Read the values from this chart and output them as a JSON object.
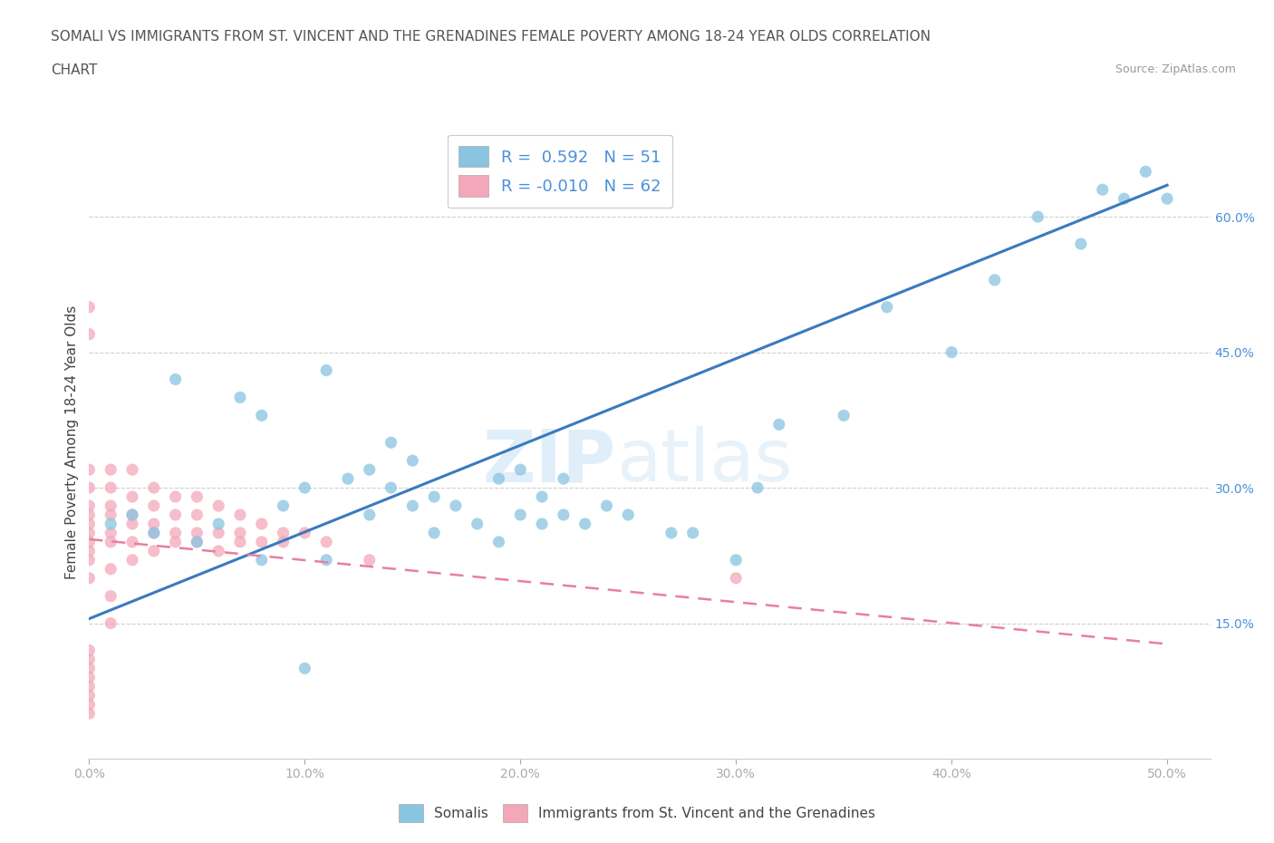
{
  "title_line1": "SOMALI VS IMMIGRANTS FROM ST. VINCENT AND THE GRENADINES FEMALE POVERTY AMONG 18-24 YEAR OLDS CORRELATION",
  "title_line2": "CHART",
  "source": "Source: ZipAtlas.com",
  "ylabel": "Female Poverty Among 18-24 Year Olds",
  "xlim": [
    0.0,
    0.52
  ],
  "ylim": [
    0.0,
    0.7
  ],
  "xticks": [
    0.0,
    0.1,
    0.2,
    0.3,
    0.4,
    0.5
  ],
  "xticklabels": [
    "0.0%",
    "10.0%",
    "20.0%",
    "30.0%",
    "40.0%",
    "50.0%"
  ],
  "yticks_right": [
    0.15,
    0.3,
    0.45,
    0.6
  ],
  "yticklabels_right": [
    "15.0%",
    "30.0%",
    "45.0%",
    "60.0%"
  ],
  "legend_r1": "R =  0.592",
  "legend_n1": "N = 51",
  "legend_r2": "R = -0.010",
  "legend_n2": "N = 62",
  "color_blue": "#89c4e1",
  "color_pink": "#f4a7b9",
  "color_blue_line": "#3a7abf",
  "color_pink_line": "#e87fa0",
  "watermark_zip": "ZIP",
  "watermark_atlas": "atlas",
  "blue_scatter_x": [
    0.04,
    0.07,
    0.08,
    0.09,
    0.1,
    0.11,
    0.11,
    0.12,
    0.13,
    0.13,
    0.14,
    0.14,
    0.15,
    0.15,
    0.16,
    0.16,
    0.17,
    0.18,
    0.19,
    0.19,
    0.2,
    0.2,
    0.21,
    0.21,
    0.22,
    0.22,
    0.23,
    0.24,
    0.25,
    0.27,
    0.28,
    0.3,
    0.31,
    0.32,
    0.35,
    0.37,
    0.4,
    0.42,
    0.44,
    0.46,
    0.47,
    0.48,
    0.49,
    0.5,
    0.01,
    0.02,
    0.03,
    0.05,
    0.06,
    0.08,
    0.1
  ],
  "blue_scatter_y": [
    0.42,
    0.4,
    0.38,
    0.28,
    0.3,
    0.43,
    0.22,
    0.31,
    0.32,
    0.27,
    0.3,
    0.35,
    0.28,
    0.33,
    0.25,
    0.29,
    0.28,
    0.26,
    0.24,
    0.31,
    0.27,
    0.32,
    0.29,
    0.26,
    0.27,
    0.31,
    0.26,
    0.28,
    0.27,
    0.25,
    0.25,
    0.22,
    0.3,
    0.37,
    0.38,
    0.5,
    0.45,
    0.53,
    0.6,
    0.57,
    0.63,
    0.62,
    0.65,
    0.62,
    0.26,
    0.27,
    0.25,
    0.24,
    0.26,
    0.22,
    0.1
  ],
  "pink_scatter_x": [
    0.0,
    0.0,
    0.0,
    0.0,
    0.0,
    0.0,
    0.0,
    0.0,
    0.0,
    0.0,
    0.0,
    0.0,
    0.0,
    0.0,
    0.0,
    0.0,
    0.0,
    0.0,
    0.0,
    0.0,
    0.01,
    0.01,
    0.01,
    0.01,
    0.01,
    0.01,
    0.01,
    0.01,
    0.01,
    0.02,
    0.02,
    0.02,
    0.02,
    0.02,
    0.02,
    0.03,
    0.03,
    0.03,
    0.03,
    0.03,
    0.04,
    0.04,
    0.04,
    0.04,
    0.05,
    0.05,
    0.05,
    0.05,
    0.06,
    0.06,
    0.06,
    0.07,
    0.07,
    0.07,
    0.08,
    0.08,
    0.09,
    0.09,
    0.1,
    0.11,
    0.13,
    0.3
  ],
  "pink_scatter_y": [
    0.05,
    0.06,
    0.07,
    0.08,
    0.09,
    0.1,
    0.11,
    0.12,
    0.2,
    0.22,
    0.23,
    0.24,
    0.25,
    0.26,
    0.27,
    0.28,
    0.3,
    0.32,
    0.47,
    0.5,
    0.15,
    0.18,
    0.21,
    0.24,
    0.25,
    0.27,
    0.28,
    0.3,
    0.32,
    0.22,
    0.24,
    0.26,
    0.27,
    0.29,
    0.32,
    0.23,
    0.25,
    0.26,
    0.28,
    0.3,
    0.24,
    0.25,
    0.27,
    0.29,
    0.24,
    0.25,
    0.27,
    0.29,
    0.23,
    0.25,
    0.28,
    0.24,
    0.25,
    0.27,
    0.24,
    0.26,
    0.24,
    0.25,
    0.25,
    0.24,
    0.22,
    0.2
  ],
  "blue_trendline_x": [
    0.0,
    0.5
  ],
  "blue_trendline_y": [
    0.155,
    0.635
  ],
  "pink_trendline_x": [
    0.0,
    0.5
  ],
  "pink_trendline_y": [
    0.243,
    0.127
  ],
  "grid_color": "#d0d0d0",
  "background_color": "#ffffff",
  "fig_width": 14.06,
  "fig_height": 9.3,
  "dpi": 100
}
